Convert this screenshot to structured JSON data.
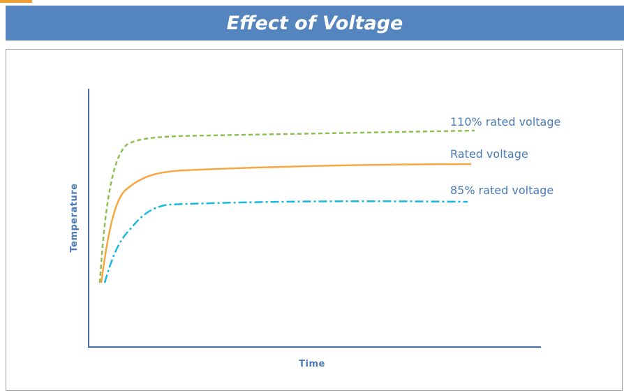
{
  "header": {
    "title": "Effect of Voltage"
  },
  "diagram": {
    "y_axis_label": "Temperature",
    "x_axis_label": "Time",
    "curves": [
      {
        "label": "110% rated voltage"
      },
      {
        "label": "Rated voltage"
      },
      {
        "label": "85% rated voltage"
      }
    ]
  }
}
